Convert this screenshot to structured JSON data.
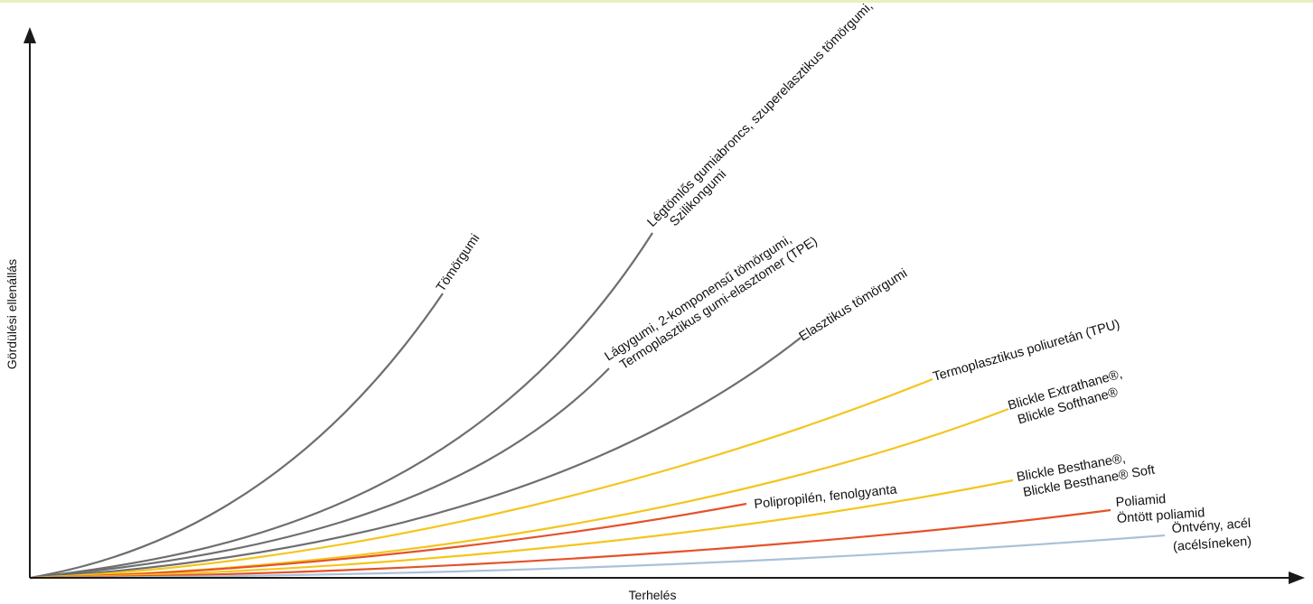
{
  "chart_data": {
    "type": "line",
    "xlabel": "Terhelés",
    "ylabel": "Gördülési ellenállás",
    "grid": false,
    "colors": {
      "gray": "#6d6e70",
      "yellow": "#f4c51c",
      "red": "#e5512a",
      "light_blue": "#a9c1d8",
      "axis": "#1a1a1a"
    },
    "series": [
      {
        "name": "Tömörgumi",
        "color_key": "gray",
        "lines": [
          "Tömörgumi"
        ]
      },
      {
        "name": "Légtömlős gumiabroncs, szuperelasztikus tömörgumi, Szilikongumi",
        "color_key": "gray",
        "lines": [
          "Légtömlős gumiabroncs, szuperelasztikus tömörgumi,",
          "Szilikongumi"
        ]
      },
      {
        "name": "Lágygumi, 2-komponensű tömörgumi, Termoplasztikus gumi-elasztomer (TPE)",
        "color_key": "gray",
        "lines": [
          "Lágygumi, 2-komponensű tömörgumi,",
          "Termoplasztikus gumi-elasztomer (TPE)"
        ]
      },
      {
        "name": "Elasztikus tömörgumi",
        "color_key": "gray",
        "lines": [
          "Elasztikus tömörgumi"
        ]
      },
      {
        "name": "Termoplasztikus poliuretán (TPU)",
        "color_key": "yellow",
        "lines": [
          "Termoplasztikus poliuretán (TPU)"
        ]
      },
      {
        "name": "Blickle Extrathane®, Blickle Softhane®",
        "color_key": "yellow",
        "lines": [
          "Blickle Extrathane®,",
          "Blickle Softhane®"
        ]
      },
      {
        "name": "Polipropilén, fenolgyanta",
        "color_key": "red",
        "lines": [
          "Polipropilén, fenolgyanta"
        ]
      },
      {
        "name": "Blickle Besthane®, Blickle Besthane® Soft",
        "color_key": "yellow",
        "lines": [
          "Blickle Besthane®,",
          "Blickle Besthane® Soft"
        ]
      },
      {
        "name": "Poliamid Öntött poliamid",
        "color_key": "red",
        "lines": [
          "Poliamid",
          "Öntött poliamid"
        ]
      },
      {
        "name": "Öntvény, acél (acélsíneken)",
        "color_key": "light_blue",
        "lines": [
          "Öntvény, acél",
          "(acélsíneken)"
        ]
      }
    ]
  }
}
